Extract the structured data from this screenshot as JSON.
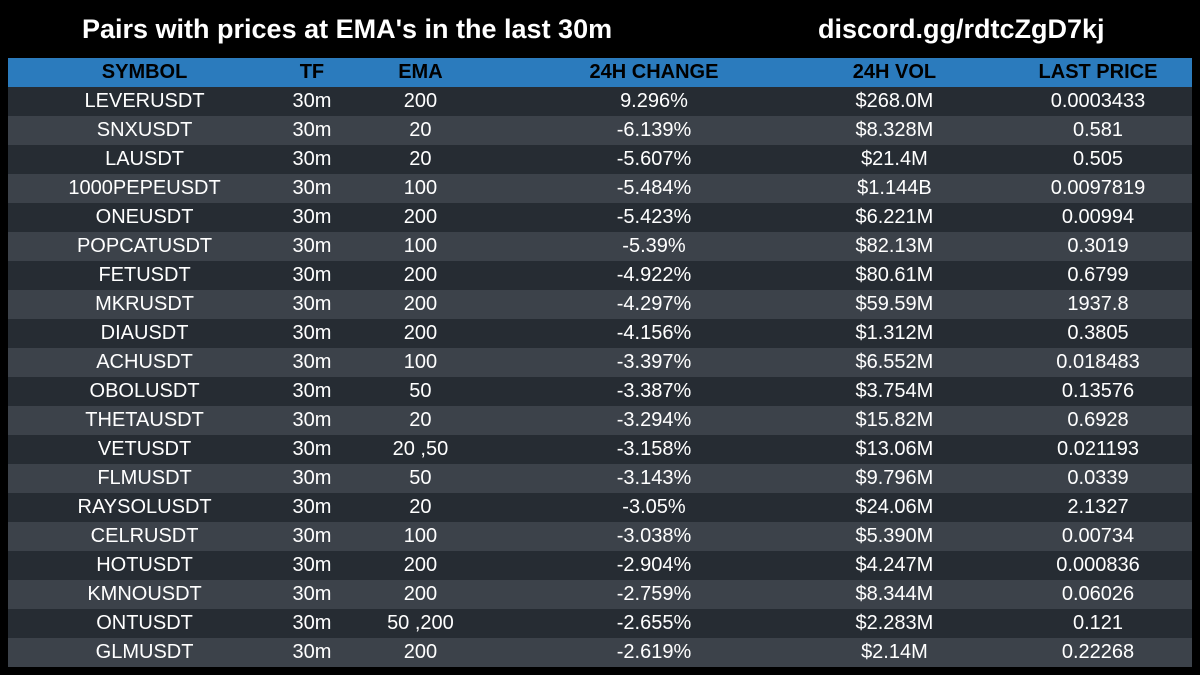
{
  "header": {
    "title": "Pairs with prices at EMA's in the last 30m",
    "link": "discord.gg/rdtcZgD7kj"
  },
  "table": {
    "columns": [
      "SYMBOL",
      "TF",
      "EMA",
      "24H CHANGE",
      "24H VOL",
      "LAST PRICE"
    ],
    "rows": [
      {
        "symbol": "LEVERUSDT",
        "tf": "30m",
        "ema": "200",
        "change": "9.296%",
        "vol": "$268.0M",
        "price": "0.0003433"
      },
      {
        "symbol": "SNXUSDT",
        "tf": "30m",
        "ema": "20",
        "change": "-6.139%",
        "vol": "$8.328M",
        "price": "0.581"
      },
      {
        "symbol": "LAUSDT",
        "tf": "30m",
        "ema": "20",
        "change": "-5.607%",
        "vol": "$21.4M",
        "price": "0.505"
      },
      {
        "symbol": "1000PEPEUSDT",
        "tf": "30m",
        "ema": "100",
        "change": "-5.484%",
        "vol": "$1.144B",
        "price": "0.0097819"
      },
      {
        "symbol": "ONEUSDT",
        "tf": "30m",
        "ema": "200",
        "change": "-5.423%",
        "vol": "$6.221M",
        "price": "0.00994"
      },
      {
        "symbol": "POPCATUSDT",
        "tf": "30m",
        "ema": "100",
        "change": "-5.39%",
        "vol": "$82.13M",
        "price": "0.3019"
      },
      {
        "symbol": "FETUSDT",
        "tf": "30m",
        "ema": "200",
        "change": "-4.922%",
        "vol": "$80.61M",
        "price": "0.6799"
      },
      {
        "symbol": "MKRUSDT",
        "tf": "30m",
        "ema": "200",
        "change": "-4.297%",
        "vol": "$59.59M",
        "price": "1937.8"
      },
      {
        "symbol": "DIAUSDT",
        "tf": "30m",
        "ema": "200",
        "change": "-4.156%",
        "vol": "$1.312M",
        "price": "0.3805"
      },
      {
        "symbol": "ACHUSDT",
        "tf": "30m",
        "ema": "100",
        "change": "-3.397%",
        "vol": "$6.552M",
        "price": "0.018483"
      },
      {
        "symbol": "OBOLUSDT",
        "tf": "30m",
        "ema": "50",
        "change": "-3.387%",
        "vol": "$3.754M",
        "price": "0.13576"
      },
      {
        "symbol": "THETAUSDT",
        "tf": "30m",
        "ema": "20",
        "change": "-3.294%",
        "vol": "$15.82M",
        "price": "0.6928"
      },
      {
        "symbol": "VETUSDT",
        "tf": "30m",
        "ema": "20 ,50",
        "change": "-3.158%",
        "vol": "$13.06M",
        "price": "0.021193"
      },
      {
        "symbol": "FLMUSDT",
        "tf": "30m",
        "ema": "50",
        "change": "-3.143%",
        "vol": "$9.796M",
        "price": "0.0339"
      },
      {
        "symbol": "RAYSOLUSDT",
        "tf": "30m",
        "ema": "20",
        "change": "-3.05%",
        "vol": "$24.06M",
        "price": "2.1327"
      },
      {
        "symbol": "CELRUSDT",
        "tf": "30m",
        "ema": "100",
        "change": "-3.038%",
        "vol": "$5.390M",
        "price": "0.00734"
      },
      {
        "symbol": "HOTUSDT",
        "tf": "30m",
        "ema": "200",
        "change": "-2.904%",
        "vol": "$4.247M",
        "price": "0.000836"
      },
      {
        "symbol": "KMNOUSDT",
        "tf": "30m",
        "ema": "200",
        "change": "-2.759%",
        "vol": "$8.344M",
        "price": "0.06026"
      },
      {
        "symbol": "ONTUSDT",
        "tf": "30m",
        "ema": "50 ,200",
        "change": "-2.655%",
        "vol": "$2.283M",
        "price": "0.121"
      },
      {
        "symbol": "GLMUSDT",
        "tf": "30m",
        "ema": "200",
        "change": "-2.619%",
        "vol": "$2.14M",
        "price": "0.22268"
      }
    ]
  },
  "colors": {
    "background": "#000000",
    "header_row": "#2b7bbd",
    "row_dark": "#262c33",
    "row_light": "#3c424a",
    "text": "#ffffff"
  }
}
